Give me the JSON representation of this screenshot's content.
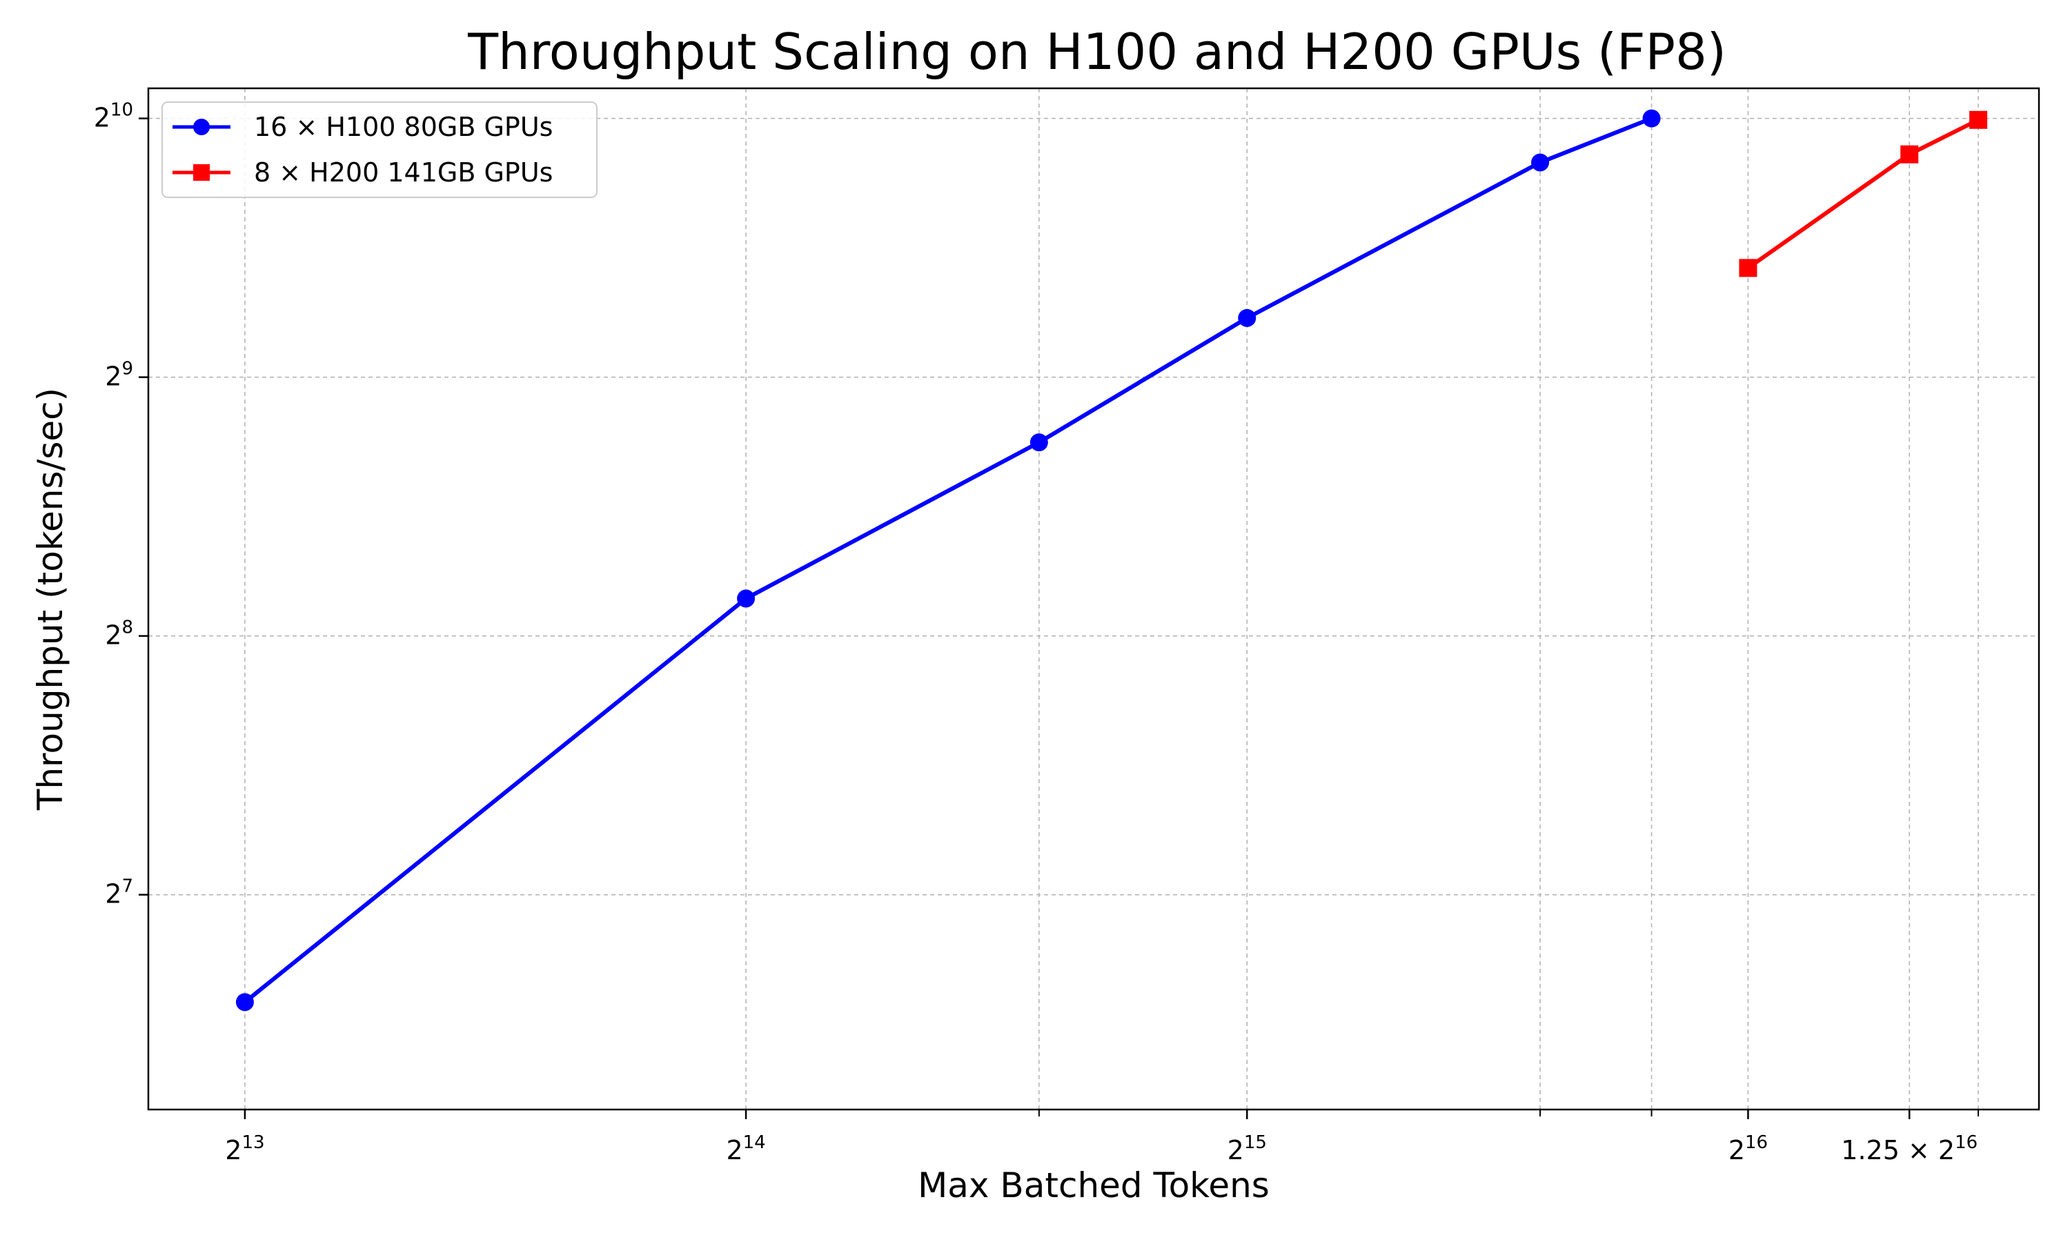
{
  "chart_data": {
    "type": "line",
    "title": "Throughput Scaling on H100 and H200 GPUs (FP8)",
    "xlabel": "Max Batched Tokens",
    "ylabel": "Throughput (tokens/sec)",
    "xscale": "log2",
    "yscale": "log2",
    "xlim": [
      7168,
      98000
    ],
    "ylim": [
      72,
      1110
    ],
    "grid": true,
    "legend_position": "top-left",
    "x_ticks": [
      {
        "value": 8192,
        "label": "2^13",
        "base": "2",
        "exp": "13"
      },
      {
        "value": 16384,
        "label": "2^14",
        "base": "2",
        "exp": "14"
      },
      {
        "value": 32768,
        "label": "2^15",
        "base": "2",
        "exp": "15"
      },
      {
        "value": 65536,
        "label": "2^16",
        "base": "2",
        "exp": "16"
      },
      {
        "value": 81920,
        "label": "1.25 × 2^16",
        "base": "1.25 × 2",
        "exp": "16"
      }
    ],
    "x_minor_ticks": [
      24576,
      49152,
      57344,
      90112
    ],
    "y_ticks": [
      {
        "value": 128,
        "label": "2^7",
        "base": "2",
        "exp": "7"
      },
      {
        "value": 256,
        "label": "2^8",
        "base": "2",
        "exp": "8"
      },
      {
        "value": 512,
        "label": "2^9",
        "base": "2",
        "exp": "9"
      },
      {
        "value": 1024,
        "label": "2^10",
        "base": "2",
        "exp": "10"
      }
    ],
    "series": [
      {
        "name": "16 × H100 80GB GPUs",
        "color": "#0000ff",
        "marker": "circle",
        "points": [
          {
            "x": 8192,
            "y": 96
          },
          {
            "x": 16384,
            "y": 283
          },
          {
            "x": 24576,
            "y": 430
          },
          {
            "x": 32768,
            "y": 600
          },
          {
            "x": 49152,
            "y": 910
          },
          {
            "x": 57344,
            "y": 1024
          }
        ]
      },
      {
        "name": "8 × H200 141GB GPUs",
        "color": "#ff0000",
        "marker": "square",
        "points": [
          {
            "x": 65536,
            "y": 686
          },
          {
            "x": 81920,
            "y": 930
          },
          {
            "x": 90112,
            "y": 1020
          }
        ]
      }
    ]
  }
}
